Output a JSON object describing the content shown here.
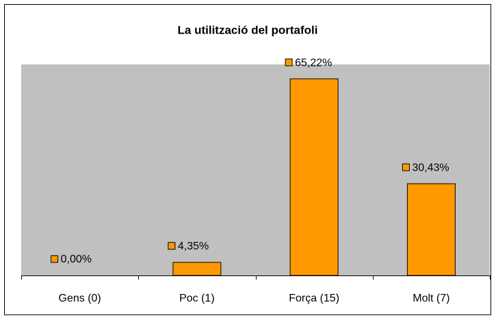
{
  "chart_data": {
    "type": "bar",
    "title": "La utilització del portafoli",
    "categories": [
      "Gens (0)",
      "Poc (1)",
      "Força (15)",
      "Molt (7)"
    ],
    "values": [
      0,
      4.35,
      65.22,
      30.43
    ],
    "value_labels": [
      "0,00%",
      "4,35%",
      "65,22%",
      "30,43%"
    ],
    "color": "#ff9900",
    "ylim": [
      0,
      70
    ]
  }
}
